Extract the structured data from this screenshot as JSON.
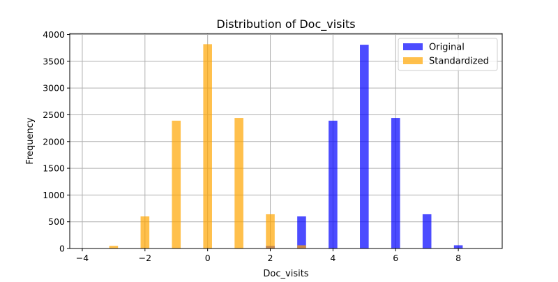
{
  "chart_data": {
    "type": "bar",
    "title": "Distribution of Doc_visits",
    "xlabel": "Doc_visits",
    "ylabel": "Frequency",
    "xlim": [
      -4.4,
      9.4
    ],
    "ylim": [
      0,
      4020
    ],
    "xticks": [
      -4,
      -2,
      0,
      2,
      4,
      6,
      8
    ],
    "xtick_labels": [
      "−4",
      "−2",
      "0",
      "2",
      "4",
      "6",
      "8"
    ],
    "yticks": [
      0,
      500,
      1000,
      1500,
      2000,
      2500,
      3000,
      3500,
      4000
    ],
    "ytick_labels": [
      "0",
      "500",
      "1000",
      "1500",
      "2000",
      "2500",
      "3000",
      "3500",
      "4000"
    ],
    "grid": true,
    "legend_position": "top-right",
    "series": [
      {
        "name": "Original",
        "color": "#0000ff",
        "opacity": 0.7,
        "bin_width": 0.28,
        "bins": [
          {
            "x": 2,
            "count": 50
          },
          {
            "x": 3,
            "count": 600
          },
          {
            "x": 4,
            "count": 2390
          },
          {
            "x": 5,
            "count": 3810
          },
          {
            "x": 6,
            "count": 2440
          },
          {
            "x": 7,
            "count": 640
          },
          {
            "x": 8,
            "count": 60
          }
        ]
      },
      {
        "name": "Standardized",
        "color": "#ffa500",
        "opacity": 0.7,
        "bin_width": 0.28,
        "bins": [
          {
            "x": -3,
            "count": 50
          },
          {
            "x": -2,
            "count": 600
          },
          {
            "x": -1,
            "count": 2390
          },
          {
            "x": 0,
            "count": 3820
          },
          {
            "x": 1,
            "count": 2440
          },
          {
            "x": 2,
            "count": 640
          },
          {
            "x": 3,
            "count": 60
          }
        ]
      }
    ]
  }
}
